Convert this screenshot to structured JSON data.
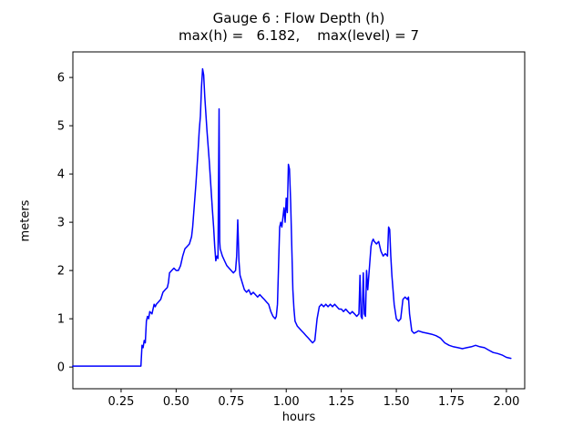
{
  "title": "Gauge 6 : Flow Depth (h)",
  "subtitle": "max(h) =   6.182,    max(level) = 7",
  "chart_data": {
    "type": "line",
    "title": "Gauge 6 : Flow Depth (h)",
    "subtitle": "max(h) =   6.182,    max(level) = 7",
    "max_h": 6.182,
    "max_level": 7,
    "xlabel": "hours",
    "ylabel": "meters",
    "line_color": "#0000ff",
    "axis_color": "#000000",
    "background_color": "#ffffff",
    "grid": false,
    "legend": "none",
    "xlim": [
      0.031,
      2.083
    ],
    "ylim": [
      -0.45,
      6.53
    ],
    "x_ticks": [
      0.25,
      0.5,
      0.75,
      1.0,
      1.25,
      1.5,
      1.75,
      2.0
    ],
    "x_tick_labels": [
      "0.25",
      "0.50",
      "0.75",
      "1.00",
      "1.25",
      "1.50",
      "1.75",
      "2.00"
    ],
    "y_ticks": [
      0,
      1,
      2,
      3,
      4,
      5,
      6
    ],
    "y_tick_labels": [
      "0",
      "1",
      "2",
      "3",
      "4",
      "5",
      "6"
    ],
    "points": [
      [
        0.03,
        0.02
      ],
      [
        0.1,
        0.02
      ],
      [
        0.2,
        0.02
      ],
      [
        0.3,
        0.02
      ],
      [
        0.34,
        0.02
      ],
      [
        0.345,
        0.45
      ],
      [
        0.35,
        0.4
      ],
      [
        0.355,
        0.55
      ],
      [
        0.36,
        0.5
      ],
      [
        0.365,
        0.95
      ],
      [
        0.37,
        1.05
      ],
      [
        0.375,
        1.0
      ],
      [
        0.38,
        1.15
      ],
      [
        0.39,
        1.1
      ],
      [
        0.4,
        1.3
      ],
      [
        0.405,
        1.25
      ],
      [
        0.41,
        1.3
      ],
      [
        0.42,
        1.35
      ],
      [
        0.43,
        1.4
      ],
      [
        0.44,
        1.55
      ],
      [
        0.45,
        1.6
      ],
      [
        0.46,
        1.65
      ],
      [
        0.465,
        1.75
      ],
      [
        0.47,
        1.95
      ],
      [
        0.48,
        2.0
      ],
      [
        0.49,
        2.05
      ],
      [
        0.5,
        2.0
      ],
      [
        0.51,
        2.0
      ],
      [
        0.52,
        2.1
      ],
      [
        0.53,
        2.3
      ],
      [
        0.54,
        2.45
      ],
      [
        0.55,
        2.5
      ],
      [
        0.56,
        2.55
      ],
      [
        0.57,
        2.7
      ],
      [
        0.575,
        2.9
      ],
      [
        0.58,
        3.2
      ],
      [
        0.59,
        3.8
      ],
      [
        0.6,
        4.5
      ],
      [
        0.605,
        4.9
      ],
      [
        0.61,
        5.2
      ],
      [
        0.615,
        5.8
      ],
      [
        0.62,
        6.18
      ],
      [
        0.625,
        6.05
      ],
      [
        0.63,
        5.6
      ],
      [
        0.64,
        4.9
      ],
      [
        0.65,
        4.3
      ],
      [
        0.66,
        3.6
      ],
      [
        0.665,
        3.25
      ],
      [
        0.67,
        2.9
      ],
      [
        0.675,
        2.5
      ],
      [
        0.68,
        2.2
      ],
      [
        0.685,
        2.3
      ],
      [
        0.69,
        2.25
      ],
      [
        0.695,
        5.35
      ],
      [
        0.698,
        2.6
      ],
      [
        0.7,
        2.45
      ],
      [
        0.71,
        2.3
      ],
      [
        0.72,
        2.2
      ],
      [
        0.73,
        2.1
      ],
      [
        0.74,
        2.05
      ],
      [
        0.75,
        2.0
      ],
      [
        0.76,
        1.95
      ],
      [
        0.77,
        2.0
      ],
      [
        0.775,
        2.3
      ],
      [
        0.78,
        3.05
      ],
      [
        0.785,
        2.2
      ],
      [
        0.79,
        1.9
      ],
      [
        0.8,
        1.75
      ],
      [
        0.81,
        1.6
      ],
      [
        0.82,
        1.55
      ],
      [
        0.83,
        1.6
      ],
      [
        0.84,
        1.5
      ],
      [
        0.85,
        1.55
      ],
      [
        0.86,
        1.5
      ],
      [
        0.87,
        1.45
      ],
      [
        0.88,
        1.5
      ],
      [
        0.89,
        1.45
      ],
      [
        0.9,
        1.4
      ],
      [
        0.91,
        1.35
      ],
      [
        0.92,
        1.3
      ],
      [
        0.93,
        1.15
      ],
      [
        0.94,
        1.05
      ],
      [
        0.95,
        1.0
      ],
      [
        0.955,
        1.05
      ],
      [
        0.96,
        1.3
      ],
      [
        0.965,
        2.1
      ],
      [
        0.97,
        2.9
      ],
      [
        0.975,
        3.0
      ],
      [
        0.98,
        2.9
      ],
      [
        0.985,
        3.1
      ],
      [
        0.99,
        3.3
      ],
      [
        0.995,
        3.0
      ],
      [
        1.0,
        3.5
      ],
      [
        1.005,
        3.2
      ],
      [
        1.01,
        4.2
      ],
      [
        1.015,
        4.1
      ],
      [
        1.02,
        3.4
      ],
      [
        1.025,
        2.5
      ],
      [
        1.03,
        1.6
      ],
      [
        1.035,
        1.2
      ],
      [
        1.04,
        0.95
      ],
      [
        1.05,
        0.85
      ],
      [
        1.06,
        0.8
      ],
      [
        1.07,
        0.75
      ],
      [
        1.08,
        0.7
      ],
      [
        1.09,
        0.65
      ],
      [
        1.1,
        0.6
      ],
      [
        1.11,
        0.55
      ],
      [
        1.12,
        0.5
      ],
      [
        1.13,
        0.55
      ],
      [
        1.14,
        1.0
      ],
      [
        1.15,
        1.25
      ],
      [
        1.16,
        1.3
      ],
      [
        1.17,
        1.25
      ],
      [
        1.18,
        1.3
      ],
      [
        1.19,
        1.25
      ],
      [
        1.2,
        1.3
      ],
      [
        1.21,
        1.25
      ],
      [
        1.22,
        1.3
      ],
      [
        1.23,
        1.25
      ],
      [
        1.24,
        1.2
      ],
      [
        1.25,
        1.2
      ],
      [
        1.26,
        1.15
      ],
      [
        1.27,
        1.2
      ],
      [
        1.28,
        1.15
      ],
      [
        1.29,
        1.1
      ],
      [
        1.3,
        1.15
      ],
      [
        1.31,
        1.1
      ],
      [
        1.32,
        1.05
      ],
      [
        1.33,
        1.1
      ],
      [
        1.335,
        1.9
      ],
      [
        1.34,
        1.05
      ],
      [
        1.345,
        1.0
      ],
      [
        1.35,
        1.95
      ],
      [
        1.355,
        1.1
      ],
      [
        1.36,
        1.05
      ],
      [
        1.365,
        2.0
      ],
      [
        1.37,
        1.6
      ],
      [
        1.375,
        1.9
      ],
      [
        1.38,
        2.2
      ],
      [
        1.385,
        2.5
      ],
      [
        1.39,
        2.6
      ],
      [
        1.395,
        2.65
      ],
      [
        1.4,
        2.6
      ],
      [
        1.41,
        2.55
      ],
      [
        1.42,
        2.6
      ],
      [
        1.43,
        2.4
      ],
      [
        1.44,
        2.3
      ],
      [
        1.45,
        2.35
      ],
      [
        1.46,
        2.3
      ],
      [
        1.465,
        2.9
      ],
      [
        1.47,
        2.85
      ],
      [
        1.475,
        2.3
      ],
      [
        1.48,
        1.9
      ],
      [
        1.49,
        1.3
      ],
      [
        1.5,
        1.0
      ],
      [
        1.51,
        0.95
      ],
      [
        1.52,
        1.0
      ],
      [
        1.53,
        1.4
      ],
      [
        1.54,
        1.45
      ],
      [
        1.55,
        1.4
      ],
      [
        1.555,
        1.45
      ],
      [
        1.56,
        1.1
      ],
      [
        1.57,
        0.75
      ],
      [
        1.58,
        0.7
      ],
      [
        1.59,
        0.72
      ],
      [
        1.6,
        0.75
      ],
      [
        1.62,
        0.72
      ],
      [
        1.64,
        0.7
      ],
      [
        1.66,
        0.68
      ],
      [
        1.68,
        0.65
      ],
      [
        1.7,
        0.6
      ],
      [
        1.72,
        0.5
      ],
      [
        1.74,
        0.45
      ],
      [
        1.76,
        0.42
      ],
      [
        1.78,
        0.4
      ],
      [
        1.8,
        0.38
      ],
      [
        1.82,
        0.4
      ],
      [
        1.84,
        0.42
      ],
      [
        1.86,
        0.45
      ],
      [
        1.88,
        0.42
      ],
      [
        1.9,
        0.4
      ],
      [
        1.92,
        0.35
      ],
      [
        1.94,
        0.3
      ],
      [
        1.96,
        0.28
      ],
      [
        1.98,
        0.25
      ],
      [
        2.0,
        0.2
      ],
      [
        2.02,
        0.18
      ]
    ]
  }
}
